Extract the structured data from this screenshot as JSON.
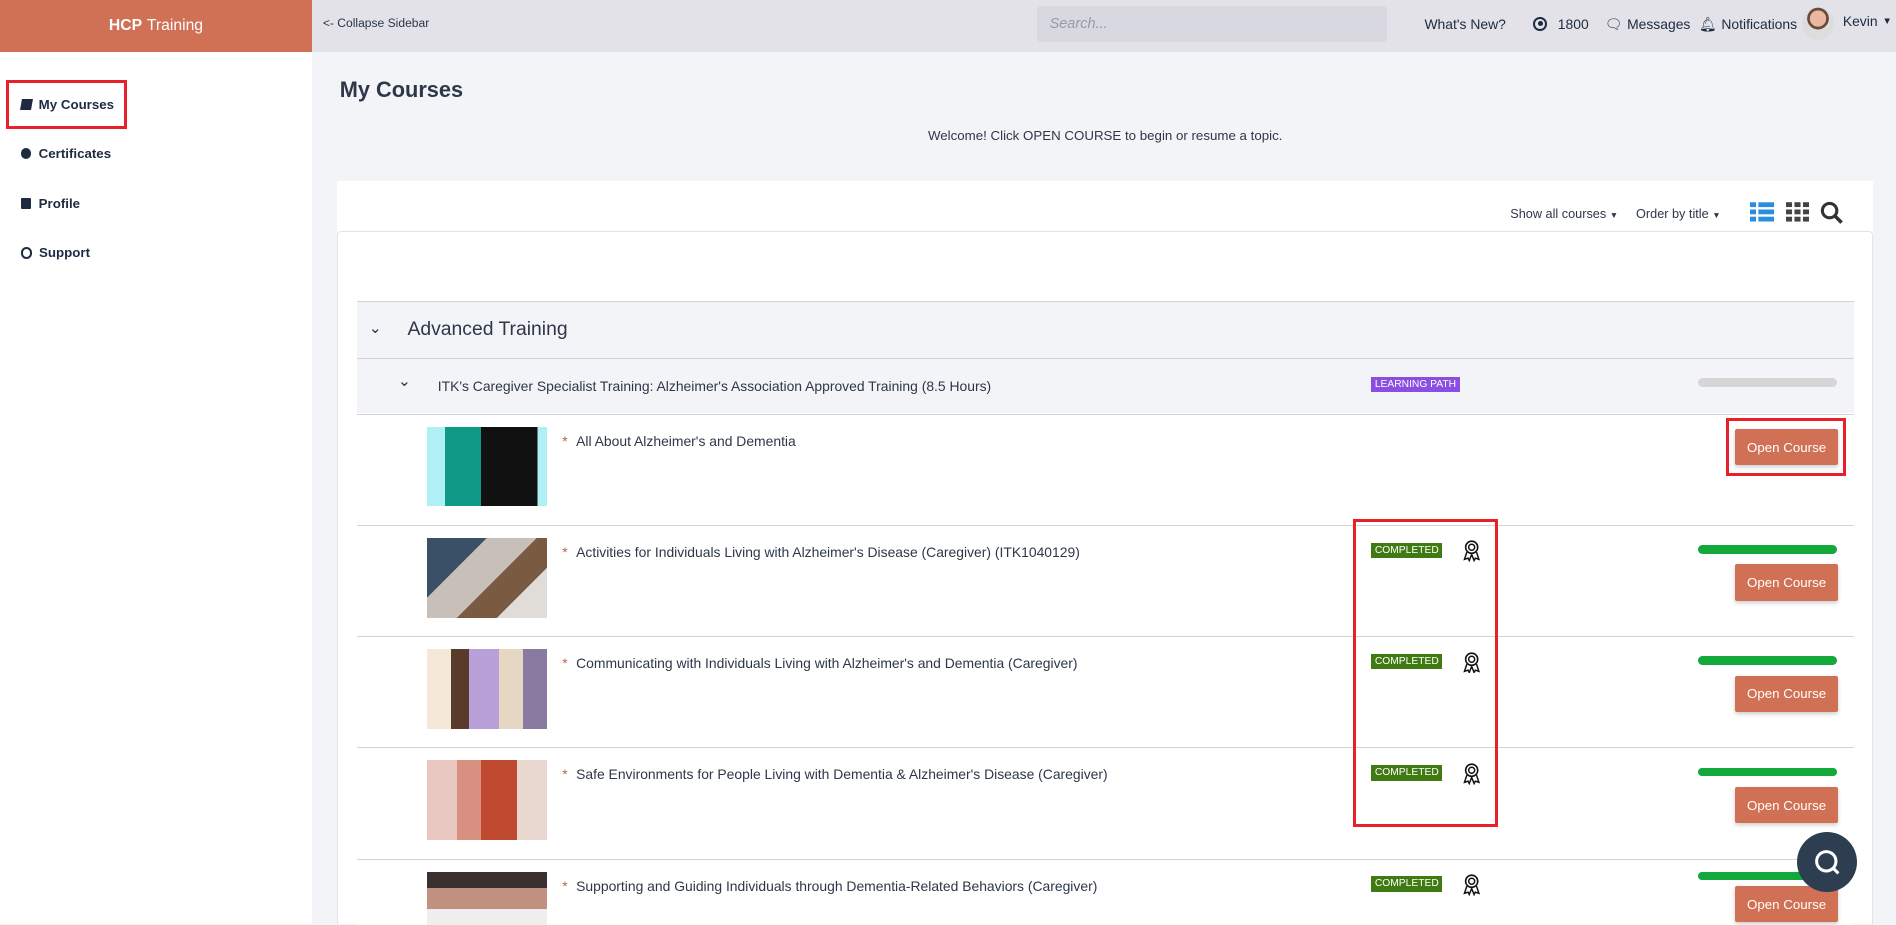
{
  "header": {
    "brand_bold": "HCP",
    "brand_rest": "Training",
    "collapse": "<- Collapse Sidebar",
    "search_placeholder": "Search...",
    "whats_new": "What's New?",
    "points": "1800",
    "messages": "Messages",
    "notifications": "Notifications",
    "user": "Kevin"
  },
  "sidebar": {
    "items": [
      {
        "label": "My Courses",
        "icon": "book-icon"
      },
      {
        "label": "Certificates",
        "icon": "certificate-icon"
      },
      {
        "label": "Profile",
        "icon": "id-badge-icon"
      },
      {
        "label": "Support",
        "icon": "life-ring-icon"
      }
    ],
    "active": "My Courses"
  },
  "main": {
    "title": "My Courses",
    "welcome": "Welcome! Click OPEN COURSE to begin or resume a topic.",
    "filter": "Show all courses",
    "order": "Order by title",
    "view_active": "list"
  },
  "group": {
    "title": "Advanced Training",
    "path": {
      "title": "ITK's Caregiver Specialist Training: Alzheimer's Association Approved Training (8.5 Hours)",
      "badge": "LEARNING PATH",
      "progress": 0
    }
  },
  "courses": [
    {
      "title": "All About Alzheimer's and Dementia",
      "status": "",
      "progress": null,
      "button": "Open Course"
    },
    {
      "title": "Activities for Individuals Living with Alzheimer's Disease (Caregiver) (ITK1040129)",
      "status": "COMPLETED",
      "progress": 100,
      "button": "Open Course"
    },
    {
      "title": "Communicating with Individuals Living with Alzheimer's and Dementia (Caregiver)",
      "status": "COMPLETED",
      "progress": 100,
      "button": "Open Course"
    },
    {
      "title": "Safe Environments for People Living with Dementia & Alzheimer's Disease (Caregiver)",
      "status": "COMPLETED",
      "progress": 100,
      "button": "Open Course"
    },
    {
      "title": "Supporting and Guiding Individuals through Dementia-Related Behaviors (Caregiver)",
      "status": "COMPLETED",
      "progress": 100,
      "button": "Open Course"
    }
  ],
  "colors": {
    "brand": "#d07055",
    "completed": "#3f7a12",
    "learning_path": "#8a4fe0",
    "progress": "#12a83a",
    "highlight": "#e8202a"
  }
}
